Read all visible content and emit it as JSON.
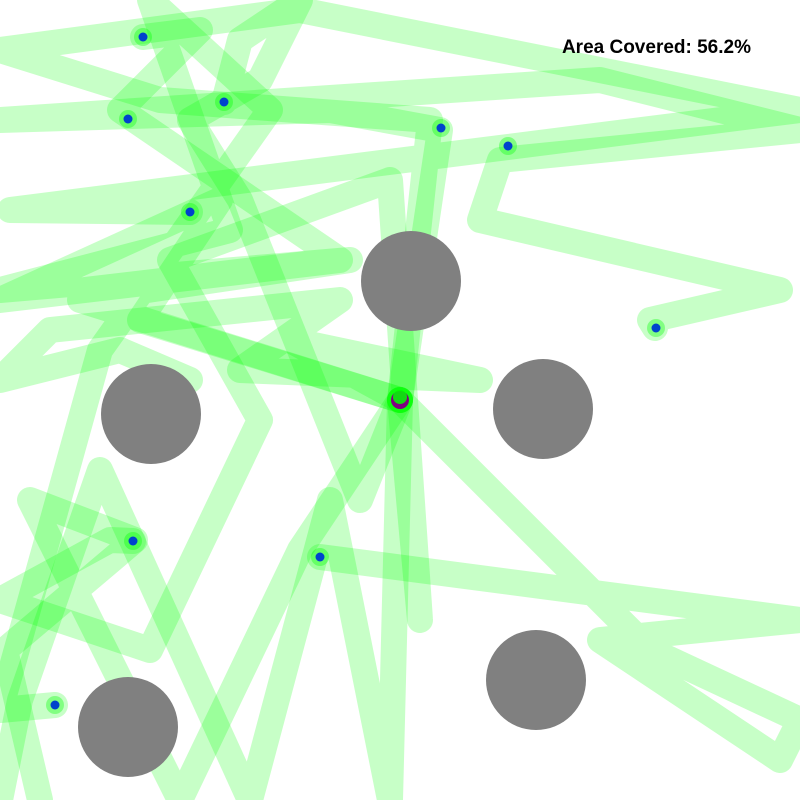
{
  "hud": {
    "coverage_label": "Area Covered: 56.2%",
    "coverage_percent": 56.2
  },
  "colors": {
    "background": "#ffffff",
    "trail": "#00ff00",
    "obstacle": "#808080",
    "agent": "#0044cc",
    "origin": "#800080"
  },
  "legend_icons": {
    "obstacle": "gray-circle",
    "agent": "blue-dot",
    "trail": "green-path"
  }
}
